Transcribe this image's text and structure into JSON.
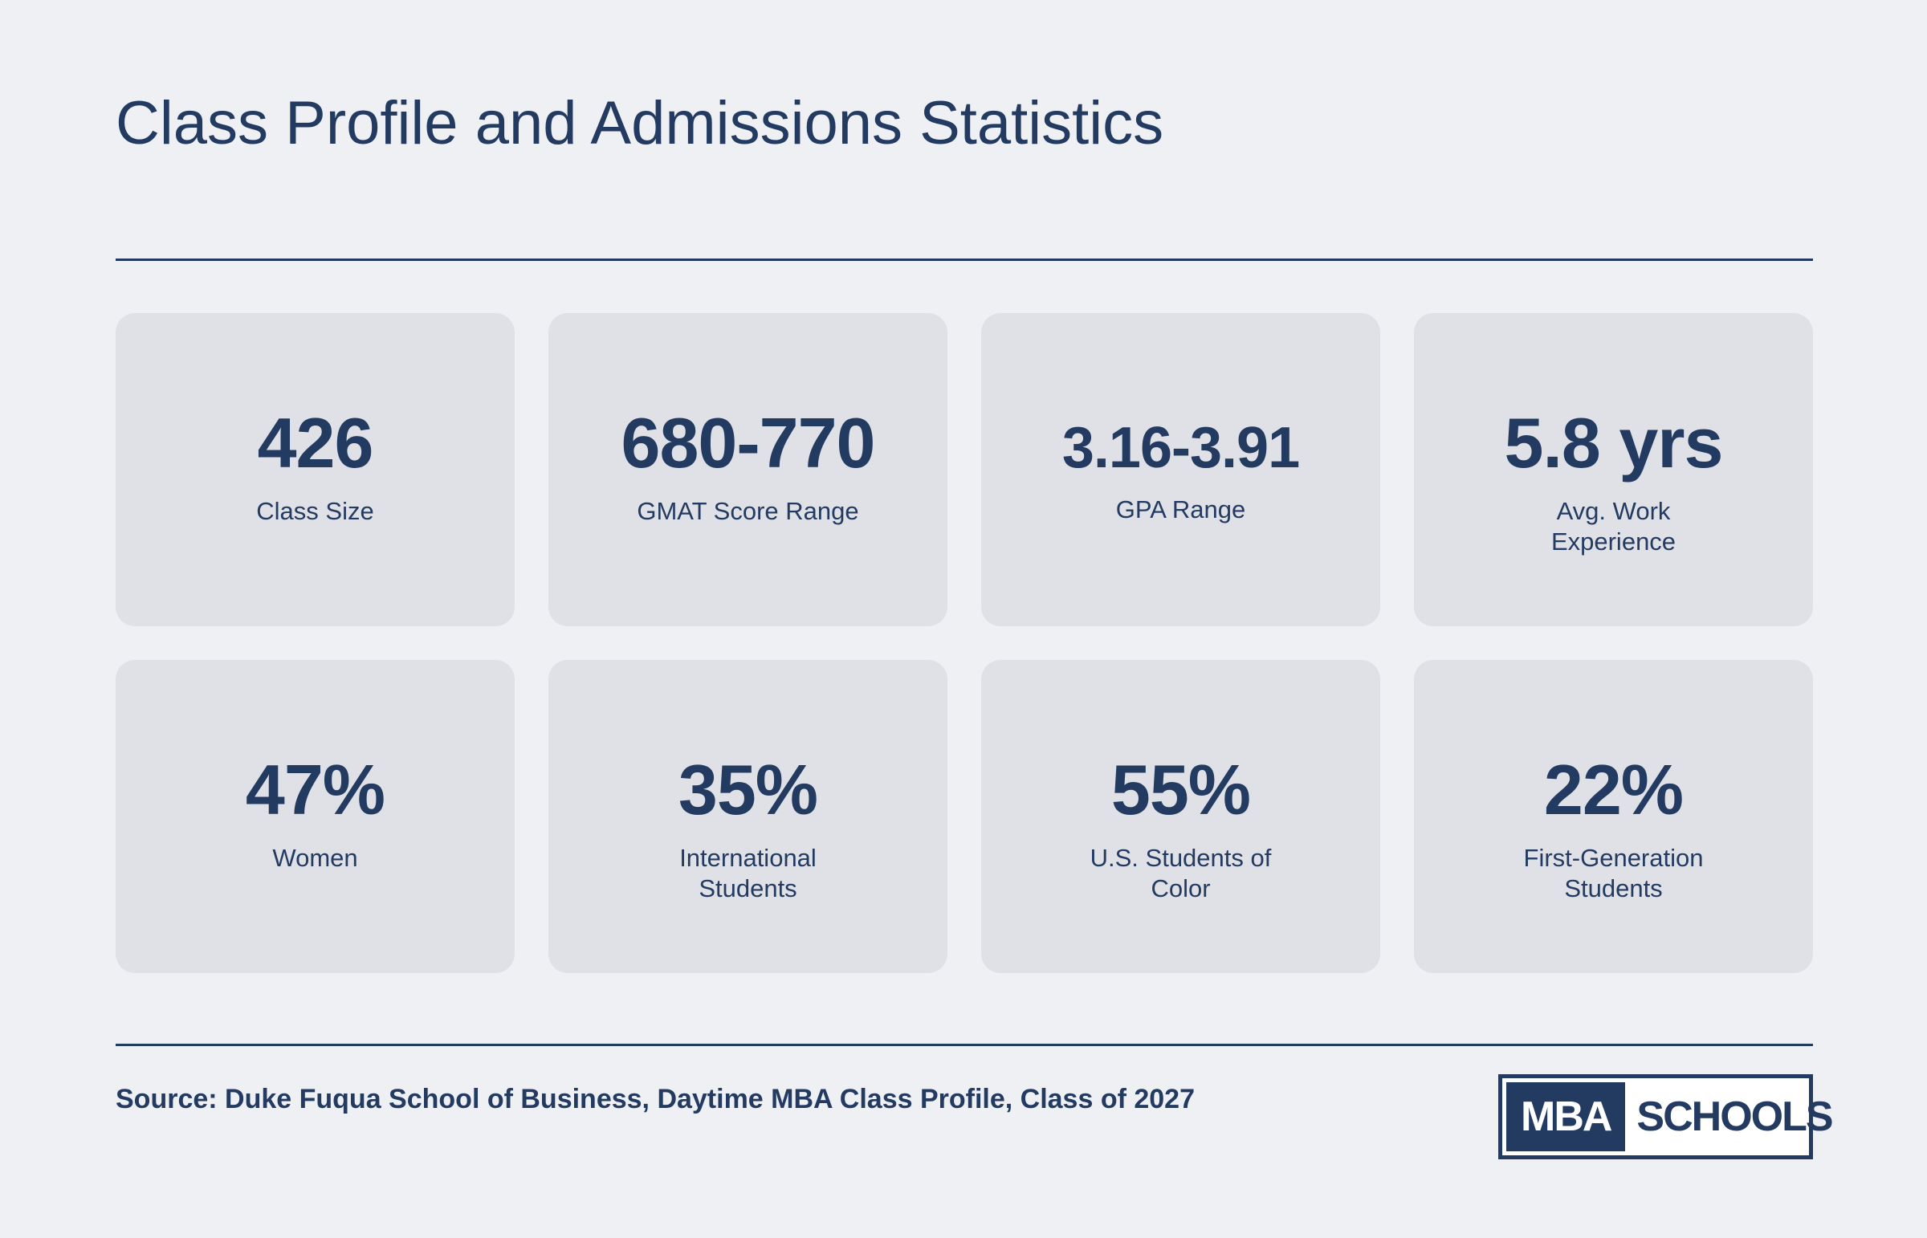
{
  "header": {
    "title": "Class Profile and Admissions Statistics"
  },
  "stats": [
    {
      "value": "426",
      "label": "Class Size"
    },
    {
      "value": "680-770",
      "label": "GMAT Score Range"
    },
    {
      "value": "3.16-3.91",
      "label": "GPA Range"
    },
    {
      "value": "5.8 yrs",
      "label": "Avg. Work Experience"
    },
    {
      "value": "47%",
      "label": "Women"
    },
    {
      "value": "35%",
      "label": "International Students"
    },
    {
      "value": "55%",
      "label": "U.S. Students of Color"
    },
    {
      "value": "22%",
      "label": "First-Generation Students"
    }
  ],
  "footer": {
    "source": "Source: Duke Fuqua School of Business, Daytime MBA Class Profile, Class of 2027",
    "logo_left": "MBA",
    "logo_right": "SCHOOLS"
  },
  "colors": {
    "background": "#eff0f4",
    "card": "#dfe1e7",
    "navy": "#233a61"
  }
}
